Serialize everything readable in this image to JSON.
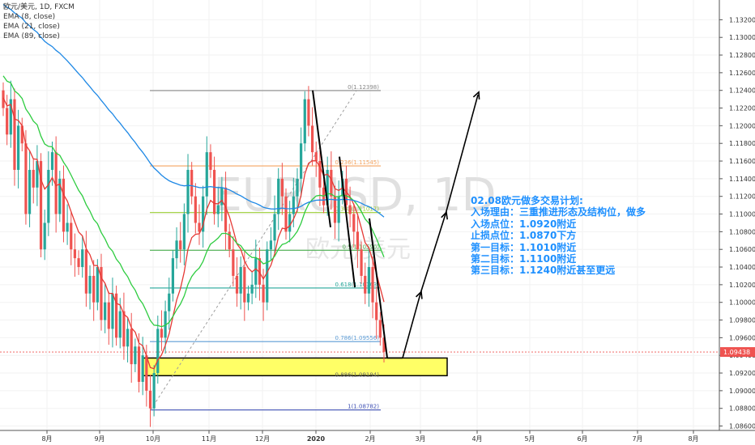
{
  "legend": {
    "symbol": "欧元/美元, 1D, FXCM",
    "ema8": "EMA (8, close)",
    "ema21": "EMA (21, close)",
    "ema89": "EMA (89, close)"
  },
  "watermark": {
    "ticker": "EURUSD, 1D",
    "name": "欧元/美元"
  },
  "plan": {
    "title": "02.08欧元做多交易计划:",
    "reason": "入场理由：三重推进形态及结构位，做多",
    "entry": "入场点位：1.0920附近",
    "stop": "止损点位：1.0870下方",
    "target1": "第一目标：1.1010附近",
    "target2": "第二目标：1.1100附近",
    "target3": "第三目标：1.1240附近甚至更远"
  },
  "current_price": "1.09438",
  "colors": {
    "up": "#26a69a",
    "down": "#ef5350",
    "ema8": "#e53935",
    "ema21": "#2ecc40",
    "ema89": "#1e88e5",
    "zone_fill": "#ffff66",
    "text_blue": "#1e90ff"
  },
  "chart_data": {
    "type": "candlestick",
    "y_axis": {
      "min": 1.0855,
      "max": 1.1335,
      "ticks": [
        "1.13200",
        "1.13000",
        "1.12800",
        "1.12600",
        "1.12400",
        "1.12200",
        "1.12000",
        "1.11800",
        "1.11600",
        "1.11400",
        "1.11200",
        "1.11000",
        "1.10800",
        "1.10600",
        "1.10400",
        "1.10200",
        "1.10000",
        "1.09800",
        "1.09600",
        "1.09400",
        "1.09200",
        "1.09000",
        "1.08800",
        "1.08600"
      ]
    },
    "x_axis": {
      "ticks": [
        "8月",
        "9月",
        "10月",
        "11月",
        "12月",
        "2020",
        "2月",
        "3月",
        "4月",
        "5月",
        "6月",
        "7月",
        "8月"
      ]
    },
    "fib_levels": [
      {
        "ratio": "0",
        "price": "1.12398",
        "label": "0(1.12398)",
        "color": "#888888"
      },
      {
        "ratio": "0.236",
        "price": "1.11545",
        "label": "0.236(1.11545)",
        "color": "#f4a460"
      },
      {
        "ratio": "0.382",
        "price": "1.11017",
        "label": "0.382(1.11017)",
        "color": "#9acd32"
      },
      {
        "ratio": "0.5",
        "price": "1.10590",
        "label": "0.5(1.10590)",
        "color": "#4caf50"
      },
      {
        "ratio": "0.618",
        "price": "1.10163",
        "label": "0.618(1.10163)",
        "color": "#26a69a"
      },
      {
        "ratio": "0.786",
        "price": "1.09556",
        "label": "0.786(1.09556)",
        "color": "#5b9bd5"
      },
      {
        "ratio": "0.886",
        "price": "1.09194",
        "label": "0.886(1.09194)",
        "color": "#888888"
      },
      {
        "ratio": "1",
        "price": "1.08782",
        "label": "1(1.08782)",
        "color": "#3f51b5"
      }
    ],
    "entry_zone": {
      "low": 1.0917,
      "high": 1.0937
    },
    "anchor_points": [
      {
        "date": "2019-10-01",
        "price": 1.08782
      },
      {
        "date": "2019-12-31",
        "price": 1.12398
      }
    ],
    "closes": [
      1.122,
      1.119,
      1.123,
      1.115,
      1.12,
      1.118,
      1.11,
      1.115,
      1.113,
      1.116,
      1.106,
      1.109,
      1.115,
      1.117,
      1.11,
      1.114,
      1.108,
      1.109,
      1.106,
      1.105,
      1.104,
      1.106,
      1.101,
      1.103,
      1.1,
      1.104,
      1.098,
      1.1,
      1.097,
      1.101,
      1.096,
      1.099,
      1.095,
      1.097,
      1.093,
      1.095,
      1.091,
      1.094,
      1.09,
      1.088,
      1.092,
      1.097,
      1.096,
      1.099,
      1.101,
      1.105,
      1.107,
      1.106,
      1.11,
      1.115,
      1.112,
      1.109,
      1.108,
      1.112,
      1.117,
      1.115,
      1.11,
      1.111,
      1.113,
      1.108,
      1.106,
      1.103,
      1.101,
      1.104,
      1.1,
      1.101,
      1.102,
      1.105,
      1.102,
      1.1,
      1.106,
      1.107,
      1.11,
      1.114,
      1.112,
      1.108,
      1.11,
      1.112,
      1.114,
      1.118,
      1.123,
      1.12,
      1.117,
      1.116,
      1.113,
      1.111,
      1.115,
      1.112,
      1.109,
      1.112,
      1.114,
      1.111,
      1.11,
      1.108,
      1.106,
      1.103,
      1.101,
      1.104,
      1.1,
      1.098,
      1.096,
      1.0944
    ],
    "ema8_note": "EMA (8, close)",
    "ema21_note": "EMA (21, close)",
    "ema89_note": "EMA (89, close)"
  }
}
